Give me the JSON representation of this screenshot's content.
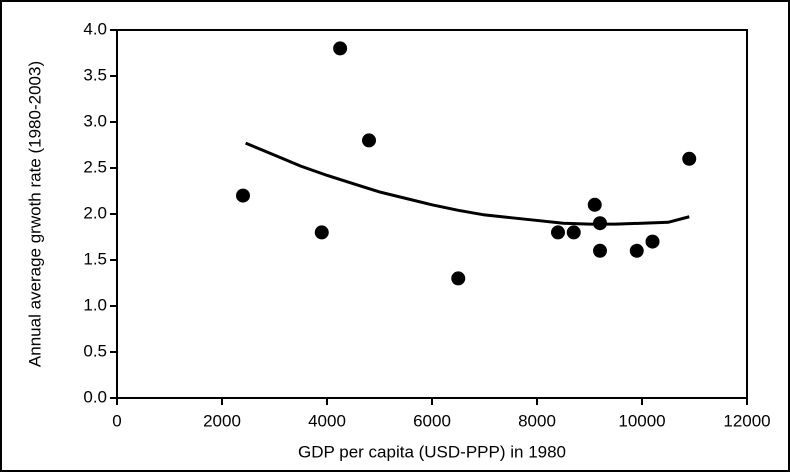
{
  "chart_data": {
    "type": "scatter",
    "xlabel": "GDP per capita (USD-PPP) in 1980",
    "ylabel": "Annual average grwoth rate  (1980-2003)",
    "xlim": [
      0,
      12000
    ],
    "xticks": [
      0,
      2000,
      4000,
      6000,
      8000,
      10000,
      12000
    ],
    "ylim": [
      0,
      4
    ],
    "yticks": [
      {
        "value": 0,
        "label": "0.0"
      },
      0.5,
      {
        "value": 1,
        "label": "1.0"
      },
      1.5,
      {
        "value": 2,
        "label": "2.0"
      },
      2.5,
      {
        "value": 3,
        "label": "3.0"
      },
      3.5,
      {
        "value": 4,
        "label": "4.0"
      }
    ],
    "series": [
      {
        "type": "scatter",
        "color": "#000000",
        "x": [
          2400,
          3900,
          4250,
          4800,
          6500,
          8400,
          8700,
          9100,
          9200,
          9200,
          9900,
          10200,
          10900
        ],
        "values": [
          2.2,
          1.8,
          3.8,
          2.8,
          1.3,
          1.8,
          1.8,
          2.1,
          1.9,
          1.6,
          1.6,
          1.7,
          2.6
        ]
      },
      {
        "type": "line",
        "color": "#000000",
        "x": [
          2450,
          3000,
          3500,
          4000,
          4500,
          5000,
          5500,
          6000,
          6500,
          7000,
          7500,
          8000,
          8500,
          9000,
          9500,
          10000,
          10500,
          10900
        ],
        "values": [
          2.77,
          2.64,
          2.52,
          2.42,
          2.33,
          2.24,
          2.17,
          2.1,
          2.04,
          1.99,
          1.96,
          1.93,
          1.9,
          1.89,
          1.89,
          1.9,
          1.91,
          1.97
        ]
      }
    ]
  }
}
